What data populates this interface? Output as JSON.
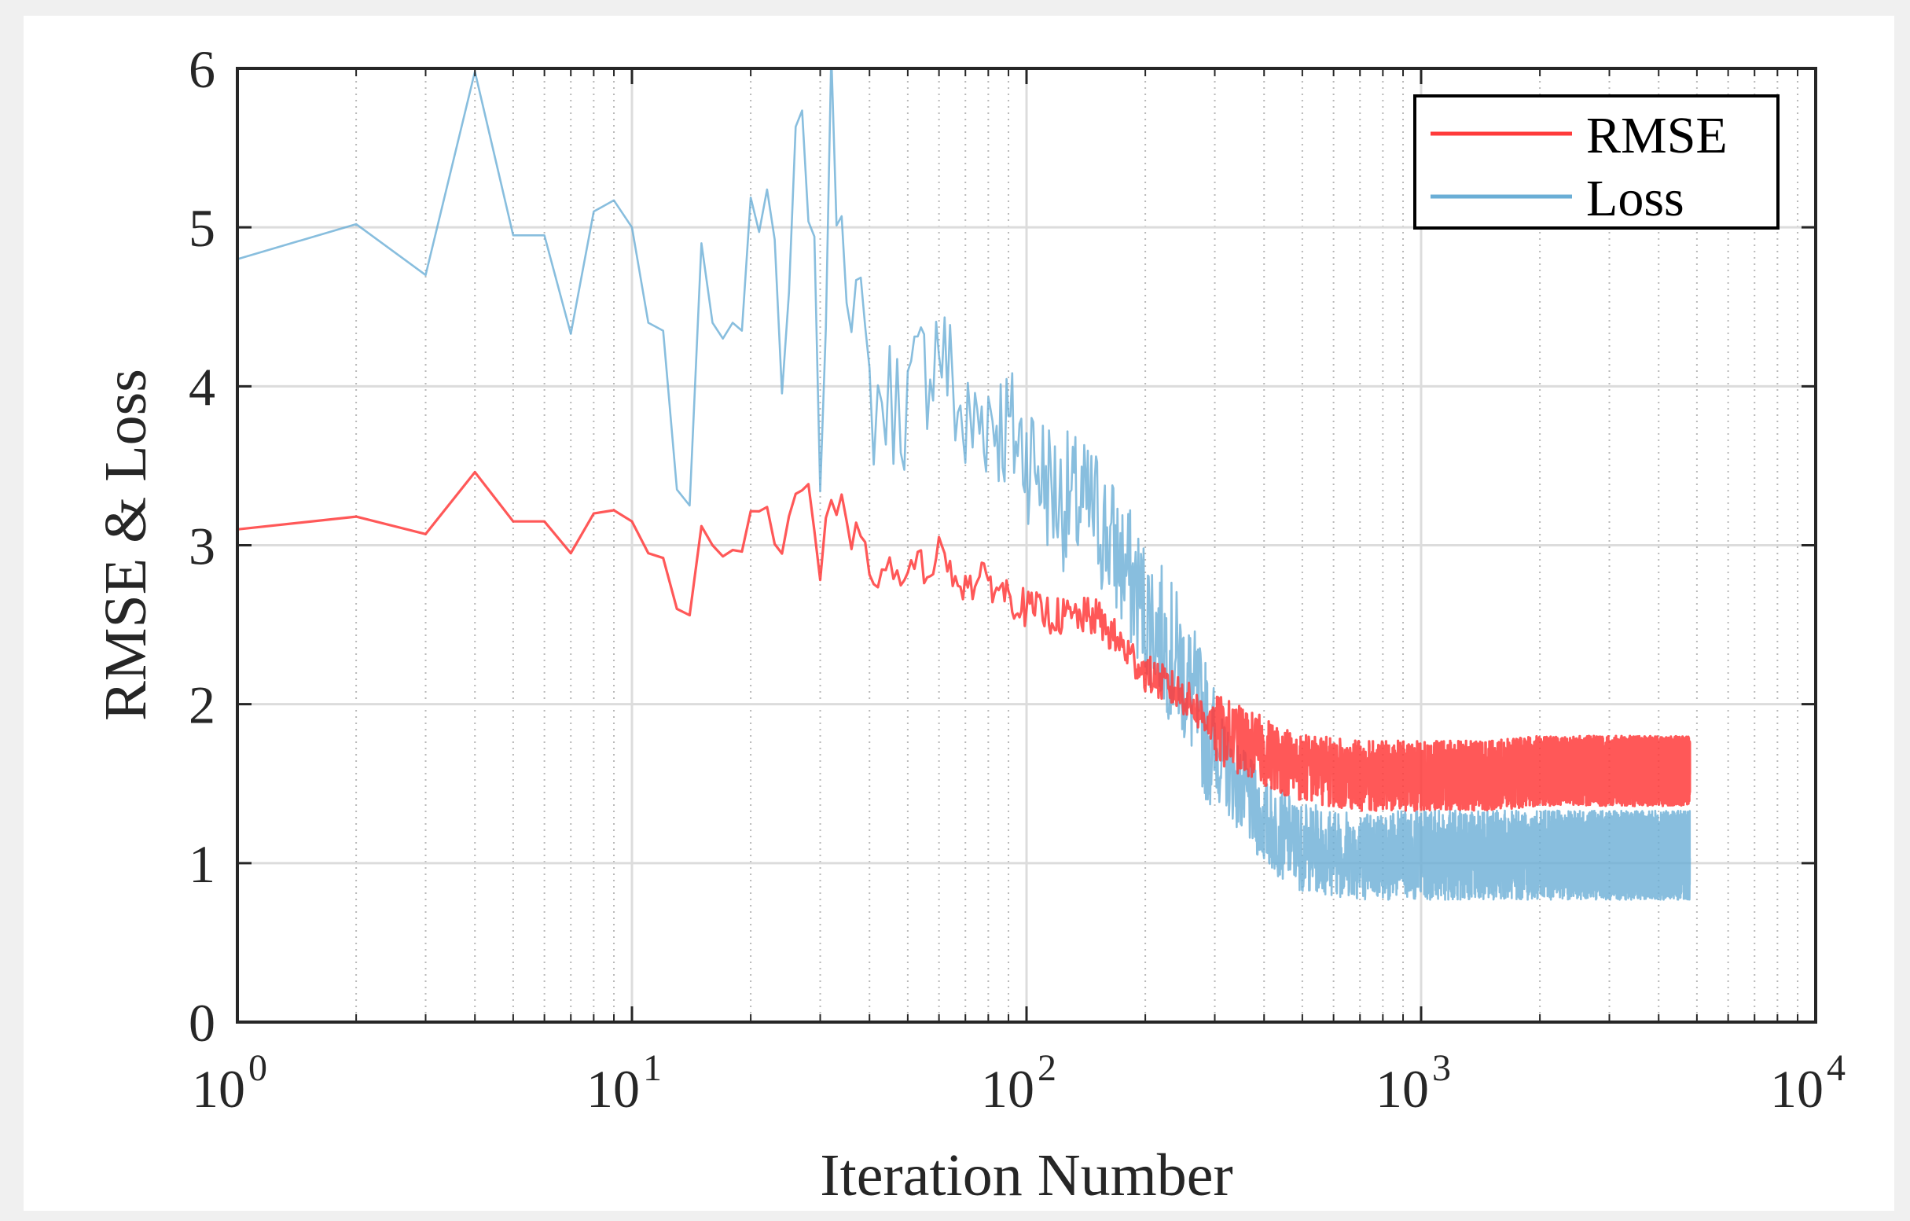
{
  "chart_data": {
    "type": "line",
    "title": "",
    "xlabel": "Iteration Number",
    "ylabel": "RMSE & Loss",
    "xscale": "log",
    "xlim": [
      1,
      10000
    ],
    "ylim": [
      0,
      6
    ],
    "xticks": [
      {
        "base": "10",
        "exp": "0"
      },
      {
        "base": "10",
        "exp": "1"
      },
      {
        "base": "10",
        "exp": "2"
      },
      {
        "base": "10",
        "exp": "3"
      },
      {
        "base": "10",
        "exp": "4"
      }
    ],
    "yticks": [
      "0",
      "1",
      "2",
      "3",
      "4",
      "5",
      "6"
    ],
    "grid": true,
    "legend_position": "top-right",
    "series": [
      {
        "name": "RMSE",
        "color": "#ff3b3b",
        "points": [
          [
            1,
            3.1
          ],
          [
            2,
            3.18
          ],
          [
            3,
            3.07
          ],
          [
            4,
            3.46
          ],
          [
            5,
            3.15
          ],
          [
            6,
            3.15
          ],
          [
            7,
            2.95
          ],
          [
            8,
            3.2
          ],
          [
            9,
            3.22
          ],
          [
            10,
            3.15
          ],
          [
            11,
            2.95
          ],
          [
            12,
            2.92
          ],
          [
            13,
            2.6
          ],
          [
            14,
            2.56
          ],
          [
            15,
            3.12
          ],
          [
            16,
            3.0
          ],
          [
            17,
            2.93
          ],
          [
            18,
            2.97
          ],
          [
            19,
            2.96
          ],
          [
            20,
            3.2
          ],
          [
            22,
            3.22
          ],
          [
            24,
            2.9
          ],
          [
            26,
            3.25
          ],
          [
            28,
            3.3
          ],
          [
            30,
            2.75
          ],
          [
            32,
            3.35
          ],
          [
            40,
            2.85
          ],
          [
            50,
            2.8
          ],
          [
            60,
            2.95
          ],
          [
            70,
            2.75
          ],
          [
            80,
            2.78
          ],
          [
            100,
            2.6
          ],
          [
            120,
            2.55
          ],
          [
            150,
            2.55
          ],
          [
            200,
            2.2
          ],
          [
            250,
            2.05
          ],
          [
            300,
            1.85
          ],
          [
            400,
            1.7
          ],
          [
            500,
            1.6
          ],
          [
            700,
            1.55
          ],
          [
            1000,
            1.55
          ],
          [
            1500,
            1.55
          ],
          [
            2000,
            1.58
          ],
          [
            3000,
            1.58
          ],
          [
            4800,
            1.58
          ]
        ]
      },
      {
        "name": "Loss",
        "color": "#6aaed6",
        "points": [
          [
            1,
            4.8
          ],
          [
            2,
            5.02
          ],
          [
            3,
            4.7
          ],
          [
            4,
            5.98
          ],
          [
            5,
            4.95
          ],
          [
            6,
            4.95
          ],
          [
            7,
            4.33
          ],
          [
            8,
            5.1
          ],
          [
            9,
            5.17
          ],
          [
            10,
            5.0
          ],
          [
            11,
            4.4
          ],
          [
            12,
            4.35
          ],
          [
            13,
            3.35
          ],
          [
            14,
            3.25
          ],
          [
            15,
            4.9
          ],
          [
            16,
            4.4
          ],
          [
            17,
            4.3
          ],
          [
            18,
            4.4
          ],
          [
            19,
            4.35
          ],
          [
            20,
            5.1
          ],
          [
            22,
            5.2
          ],
          [
            24,
            3.8
          ],
          [
            26,
            5.3
          ],
          [
            28,
            5.42
          ],
          [
            30,
            3.6
          ],
          [
            32,
            5.65
          ],
          [
            40,
            3.9
          ],
          [
            50,
            3.9
          ],
          [
            60,
            4.3
          ],
          [
            70,
            3.7
          ],
          [
            80,
            3.85
          ],
          [
            100,
            3.6
          ],
          [
            120,
            3.3
          ],
          [
            150,
            3.2
          ],
          [
            200,
            2.6
          ],
          [
            250,
            2.2
          ],
          [
            300,
            1.7
          ],
          [
            400,
            1.25
          ],
          [
            500,
            1.1
          ],
          [
            700,
            1.05
          ],
          [
            1000,
            1.05
          ],
          [
            1500,
            1.05
          ],
          [
            2000,
            1.05
          ],
          [
            3000,
            1.05
          ],
          [
            4800,
            1.05
          ]
        ]
      }
    ]
  }
}
